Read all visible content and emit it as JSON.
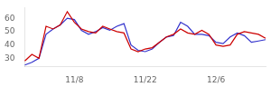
{
  "chart_data": {
    "type": "line",
    "categories": [
      null,
      null,
      null,
      null,
      null,
      null,
      null,
      "11/8",
      null,
      null,
      null,
      null,
      null,
      null,
      null,
      null,
      null,
      "11/22",
      null,
      null,
      null,
      null,
      null,
      null,
      null,
      null,
      null,
      "12/6",
      null,
      null,
      null,
      null,
      null,
      null,
      null
    ],
    "series": [
      {
        "color": "#cc0000",
        "values": [
          28,
          33,
          30,
          54,
          52,
          55,
          65,
          57,
          52,
          50,
          49,
          54,
          52,
          50,
          49,
          37,
          35,
          37,
          38,
          42,
          46,
          48,
          52,
          49,
          48,
          51,
          48,
          40,
          39,
          40,
          48,
          50,
          49,
          48,
          45
        ]
      },
      {
        "color": "#3333cc",
        "values": [
          25,
          27,
          30,
          48,
          52,
          55,
          60,
          59,
          51,
          48,
          50,
          53,
          51,
          54,
          56,
          40,
          36,
          35,
          37,
          42,
          46,
          47,
          57,
          54,
          48,
          48,
          47,
          42,
          41,
          46,
          49,
          47,
          42,
          43,
          44
        ]
      }
    ],
    "ylim": [
      24,
      68
    ],
    "yticks": [
      30,
      40,
      50,
      60
    ],
    "grid": false
  }
}
